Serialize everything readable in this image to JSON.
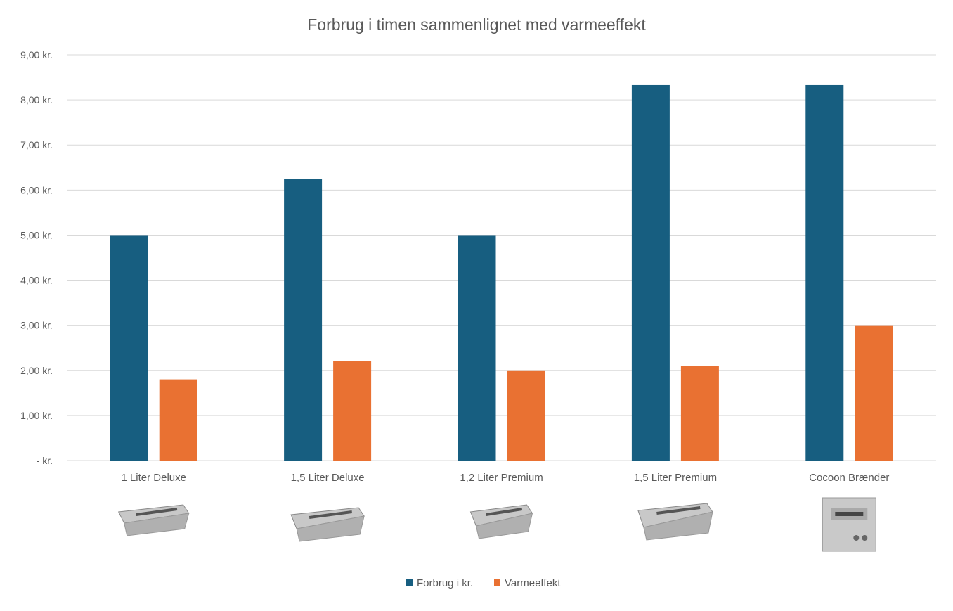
{
  "chart_data": {
    "type": "bar",
    "title": "Forbrug i timen sammenlignet med varmeeffekt",
    "xlabel": "",
    "ylabel": "",
    "categories": [
      "1 Liter Deluxe",
      "1,5 Liter Deluxe",
      "1,2 Liter Premium",
      "1,5 Liter Premium",
      "Cocoon Brænder"
    ],
    "series": [
      {
        "name": "Forbrug i kr.",
        "color": "#175E80",
        "values": [
          5.0,
          6.25,
          5.0,
          8.33,
          8.33
        ]
      },
      {
        "name": "Varmeeffekt",
        "color": "#E97132",
        "values": [
          1.8,
          2.2,
          2.0,
          2.1,
          3.0
        ]
      }
    ],
    "ylim": [
      0,
      9
    ],
    "yticks": [
      0,
      1,
      2,
      3,
      4,
      5,
      6,
      7,
      8,
      9
    ],
    "ytick_labels": [
      "-  kr.",
      "1,00 kr.",
      "2,00 kr.",
      "3,00 kr.",
      "4,00 kr.",
      "5,00 kr.",
      "6,00 kr.",
      "7,00 kr.",
      "8,00 kr.",
      "9,00 kr."
    ],
    "grid": true,
    "legend_position": "bottom"
  }
}
